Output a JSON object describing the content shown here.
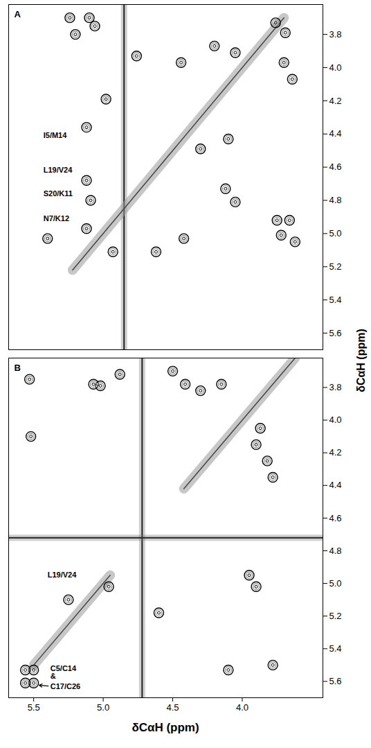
{
  "chart_data": [
    {
      "type": "contour",
      "panel": "A",
      "color": "#000000",
      "tick_labels": "y",
      "y_label": "δCαH (ppm)",
      "xlim": [
        5.68,
        3.42
      ],
      "ylim": [
        5.7,
        3.62
      ],
      "xticks": [
        5.5,
        {
          "value": 5,
          "label": "5.0"
        },
        4.5,
        {
          "value": 4,
          "label": "4.0"
        }
      ],
      "yticks": [
        3.8,
        {
          "value": 4,
          "label": "4.0"
        },
        4.2,
        4.4,
        4.6,
        4.8,
        {
          "value": 5,
          "label": "5.0"
        },
        5.2,
        5.4,
        5.6
      ],
      "solvent": {
        "x": 4.85
      },
      "diagonal": [
        {
          "x": [
            5.22,
            3.7
          ],
          "y": [
            5.22,
            3.7
          ]
        }
      ],
      "peaks": {
        "x": [
          5.24,
          5.2,
          5.1,
          5.06,
          4.76,
          4.44,
          4.2,
          4.05,
          3.76,
          3.69,
          3.7,
          3.64,
          4.98,
          5.12,
          5.12,
          5.09,
          5.12,
          5.4,
          4.93,
          4.62,
          4.42,
          4.1,
          4.12,
          4.05,
          3.75,
          3.66,
          3.72,
          3.62,
          4.3
        ],
        "y": [
          3.7,
          3.8,
          3.7,
          3.75,
          3.93,
          3.97,
          3.87,
          3.91,
          3.73,
          3.79,
          3.97,
          4.07,
          4.19,
          4.36,
          4.68,
          4.8,
          4.97,
          5.03,
          5.11,
          5.11,
          5.03,
          4.43,
          4.73,
          4.81,
          4.92,
          4.92,
          5.01,
          5.05,
          4.49
        ]
      },
      "annotations": [
        {
          "text": "I5/M14",
          "x": 5.43,
          "y": 4.41
        },
        {
          "text": "L19/V24",
          "x": 5.43,
          "y": 4.62
        },
        {
          "text": "S20/K11",
          "x": 5.43,
          "y": 4.76
        },
        {
          "text": "N7/K12",
          "x": 5.43,
          "y": 4.91
        }
      ]
    },
    {
      "type": "contour",
      "panel": "B",
      "color": "#000000",
      "x_label": "δCαH (ppm)",
      "xlim": [
        5.68,
        3.42
      ],
      "ylim": [
        5.7,
        3.62
      ],
      "xticks": [
        5.5,
        {
          "value": 5,
          "label": "5.0"
        },
        4.5,
        {
          "value": 4,
          "label": "4.0"
        }
      ],
      "yticks": [
        3.8,
        {
          "value": 4,
          "label": "4.0"
        },
        4.2,
        4.4,
        4.6,
        4.8,
        {
          "value": 5,
          "label": "5.0"
        },
        5.2,
        5.4,
        5.6
      ],
      "solvent": {
        "x": 4.72,
        "y": 4.72
      },
      "diagonal": [
        {
          "x": [
            5.5,
            4.95
          ],
          "y": [
            5.5,
            4.95
          ]
        },
        {
          "x": [
            4.42,
            3.62
          ],
          "y": [
            4.42,
            3.62
          ]
        }
      ],
      "peaks": {
        "x": [
          5.53,
          5.52,
          5.07,
          5.02,
          4.88,
          4.5,
          4.41,
          4.3,
          4.15,
          3.87,
          3.82,
          3.78,
          3.9,
          5.25,
          4.96,
          4.6,
          3.95,
          3.9,
          4.1,
          3.78,
          5.56,
          5.5,
          5.56,
          5.5
        ],
        "y": [
          3.75,
          4.1,
          3.78,
          3.79,
          3.72,
          3.7,
          3.78,
          3.82,
          3.78,
          4.05,
          4.25,
          4.35,
          4.15,
          5.1,
          5.02,
          5.18,
          4.95,
          5.02,
          5.53,
          5.5,
          5.53,
          5.53,
          5.61,
          5.61
        ]
      },
      "annotations": [
        {
          "text": "L19/V24",
          "x": 5.4,
          "y": 4.95
        },
        {
          "text": "C5/C14",
          "x": 5.38,
          "y": 5.52
        },
        {
          "text": "&",
          "x": 5.38,
          "y": 5.57
        },
        {
          "text": "C17/C26",
          "x": 5.38,
          "y": 5.63,
          "arrow_to": [
            5.5,
            5.62
          ]
        }
      ]
    }
  ]
}
